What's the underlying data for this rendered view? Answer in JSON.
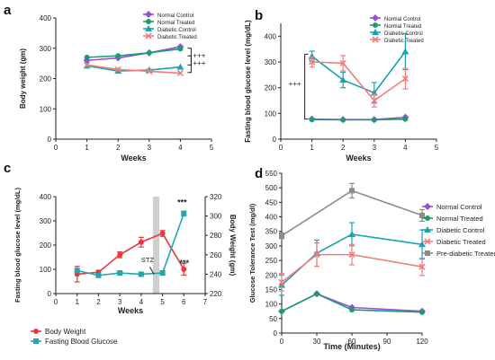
{
  "colors": {
    "normal_control": "#9b4de0",
    "normal_treated": "#1a9e6e",
    "diabetic_control": "#1aa3b3",
    "diabetic_treated": "#f47c7c",
    "pre_diabetic_treated": "#8c8c8c",
    "body_weight": "#e8383d",
    "fasting_glucose": "#23a6b0",
    "stz_band": "#cfcfcf"
  },
  "panels": [
    {
      "letter": "a"
    },
    {
      "letter": "b"
    },
    {
      "letter": "c"
    },
    {
      "letter": "d"
    }
  ],
  "chart_data": [
    {
      "id": "a",
      "type": "line",
      "title": "",
      "xlabel": "Weeks",
      "ylabel": "Body weight (gm)",
      "xlim": [
        0,
        5
      ],
      "ylim": [
        0,
        400
      ],
      "xticks": [
        "0",
        "1",
        "2",
        "3",
        "4",
        "5"
      ],
      "yticks": [
        "0",
        "100",
        "200",
        "300",
        "400"
      ],
      "x": [
        1,
        2,
        3,
        4
      ],
      "legend_position": "top-right",
      "series": [
        {
          "name": "Normal Control",
          "color_key": "normal_control",
          "marker": "diamond",
          "values": [
            260,
            268,
            285,
            305
          ]
        },
        {
          "name": "Normal Treated",
          "color_key": "normal_treated",
          "marker": "circle",
          "values": [
            270,
            275,
            285,
            298
          ]
        },
        {
          "name": "Diabetic Control",
          "color_key": "diabetic_control",
          "marker": "triangle",
          "values": [
            242,
            225,
            228,
            238
          ]
        },
        {
          "name": "Diabetic Treated",
          "color_key": "diabetic_treated",
          "marker": "x",
          "values": [
            245,
            230,
            224,
            218
          ]
        }
      ],
      "annotations": [
        "+++",
        "+++"
      ]
    },
    {
      "id": "b",
      "type": "line",
      "title": "",
      "xlabel": "Weeks",
      "ylabel": "Fasting blood glucose level (mg/dL)",
      "xlim": [
        0,
        5
      ],
      "ylim": [
        0,
        450
      ],
      "xticks": [
        "0",
        "1",
        "2",
        "3",
        "4",
        "5"
      ],
      "yticks": [
        "0",
        "100",
        "200",
        "300",
        "400"
      ],
      "x": [
        1,
        2,
        3,
        4
      ],
      "legend_position": "top-right",
      "series": [
        {
          "name": "Normal Control",
          "color_key": "normal_control",
          "marker": "diamond",
          "values": [
            78,
            76,
            76,
            85
          ]
        },
        {
          "name": "Normal Treated",
          "color_key": "normal_treated",
          "marker": "circle",
          "values": [
            76,
            75,
            75,
            78
          ]
        },
        {
          "name": "Diabetic Control",
          "color_key": "diabetic_control",
          "marker": "triangle",
          "values": [
            322,
            230,
            180,
            340
          ],
          "errors": [
            20,
            30,
            40,
            70
          ]
        },
        {
          "name": "Diabetic Treated",
          "color_key": "diabetic_treated",
          "marker": "x",
          "values": [
            300,
            295,
            150,
            235
          ],
          "errors": [
            20,
            30,
            25,
            40
          ]
        }
      ],
      "annotations": [
        "+++"
      ]
    },
    {
      "id": "c",
      "type": "line",
      "title": "",
      "xlabel": "Weeks",
      "ylabel": "Fasting blood glucose level (mg/dL)",
      "y2label": "Body Weight (gm)",
      "xlim": [
        0,
        7
      ],
      "ylim": [
        0,
        400
      ],
      "y2lim": [
        220,
        320
      ],
      "xticks": [
        "0",
        "1",
        "2",
        "3",
        "4",
        "5",
        "6",
        "7"
      ],
      "yticks": [
        "0",
        "100",
        "200",
        "300",
        "400"
      ],
      "y2ticks": [
        "220",
        "240",
        "260",
        "280",
        "300",
        "320"
      ],
      "x": [
        1,
        2,
        3,
        4,
        5,
        6
      ],
      "legend_position": "bottom-left",
      "shaded_region": [
        4.55,
        4.85
      ],
      "series": [
        {
          "name": "Body Weight",
          "color_key": "body_weight",
          "marker": "circle",
          "axis": "right",
          "values": [
            240,
            242,
            260,
            273,
            282,
            245
          ],
          "errors": [
            8,
            2,
            3,
            5,
            3,
            6
          ]
        },
        {
          "name": "Fasting Blood Glucose",
          "color_key": "fasting_glucose",
          "marker": "square",
          "axis": "left",
          "values": [
            95,
            75,
            85,
            80,
            85,
            330
          ],
          "errors": [
            5,
            5,
            5,
            5,
            5,
            10
          ]
        }
      ],
      "annotations": [
        "STZ",
        "***",
        "***"
      ]
    },
    {
      "id": "d",
      "type": "line",
      "title": "",
      "xlabel": "Time (Minutes)",
      "ylabel": "Glucose Tolerance Test (mg/dl)",
      "xlim": [
        0,
        120
      ],
      "ylim": [
        0,
        550
      ],
      "xticks": [
        "0",
        "30",
        "60",
        "90",
        "120"
      ],
      "yticks": [
        "0",
        "50",
        "100",
        "150",
        "200",
        "250",
        "300",
        "350",
        "400",
        "450",
        "500",
        "550"
      ],
      "x": [
        0,
        30,
        60,
        120
      ],
      "legend_position": "right",
      "series": [
        {
          "name": "Normal Control",
          "color_key": "normal_control",
          "marker": "diamond",
          "values": [
            75,
            135,
            88,
            75
          ]
        },
        {
          "name": "Normal Treated",
          "color_key": "normal_treated",
          "marker": "circle",
          "values": [
            75,
            135,
            80,
            72
          ]
        },
        {
          "name": "Diabetic Control",
          "color_key": "diabetic_control",
          "marker": "triangle",
          "values": [
            165,
            275,
            340,
            305
          ],
          "errors": [
            35,
            45,
            40,
            50
          ]
        },
        {
          "name": "Diabetic Treated",
          "color_key": "diabetic_treated",
          "marker": "x",
          "values": [
            175,
            270,
            270,
            228
          ],
          "errors": [
            30,
            40,
            35,
            30
          ]
        },
        {
          "name": "Pre-diabetic Treated",
          "color_key": "pre_diabetic_treated",
          "marker": "square",
          "values": [
            335,
            null,
            490,
            405
          ],
          "errors": [
            10,
            0,
            25,
            20
          ]
        }
      ]
    }
  ]
}
